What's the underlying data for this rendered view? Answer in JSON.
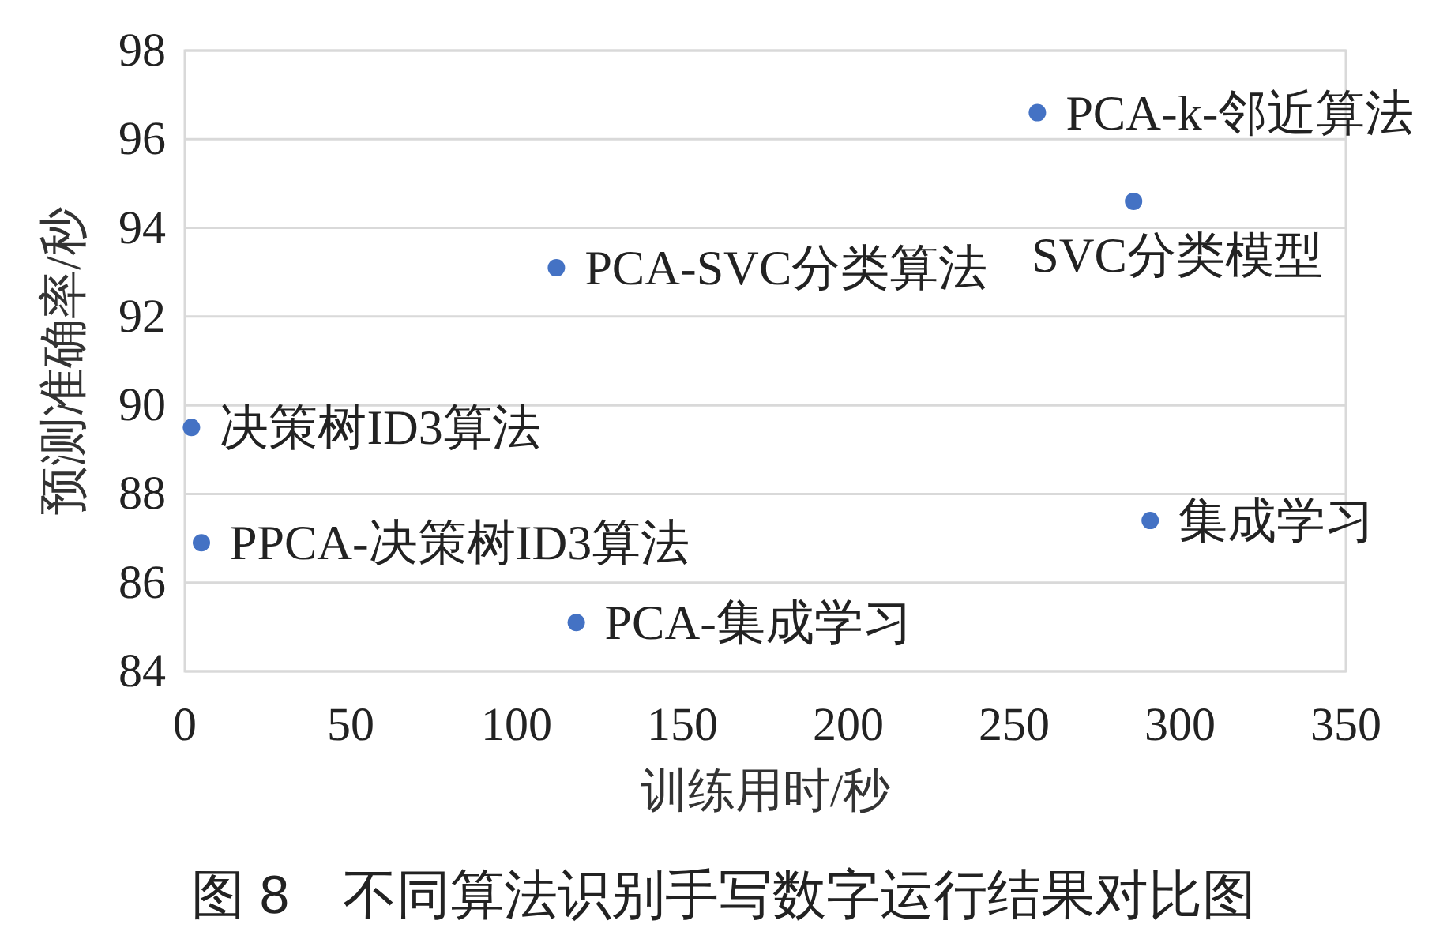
{
  "chart_data": {
    "type": "scatter",
    "title": "图 8　不同算法识别手写数字运行结果对比图",
    "xlabel": "训练用时/秒",
    "ylabel": "预测准确率/秒",
    "x": [
      257,
      286,
      112,
      2,
      5,
      118,
      291
    ],
    "series": [
      {
        "color": "#4472c4",
        "values": [
          96.6,
          94.6,
          93.1,
          89.5,
          86.9,
          85.1,
          87.4
        ]
      }
    ],
    "annotations": [
      {
        "text": "PCA-k-邻近算法",
        "x": 257,
        "y": 96.6
      },
      {
        "text": "SVC分类模型",
        "x": 286,
        "y": 94.6
      },
      {
        "text": "PCA-SVC分类算法",
        "x": 112,
        "y": 93.1
      },
      {
        "text": "决策树ID3算法",
        "x": 2,
        "y": 89.5
      },
      {
        "text": "PPCA-决策树ID3算法",
        "x": 5,
        "y": 86.9
      },
      {
        "text": "PCA-集成学习",
        "x": 118,
        "y": 85.1
      },
      {
        "text": "集成学习",
        "x": 291,
        "y": 87.4
      }
    ],
    "xlim": [
      0,
      350
    ],
    "xticks": [
      0,
      50,
      100,
      150,
      200,
      250,
      300,
      350
    ],
    "ylim": [
      84,
      98
    ],
    "yticks": [
      84,
      86,
      88,
      90,
      92,
      94,
      96,
      98
    ],
    "grid": "y",
    "marker": "circle"
  }
}
